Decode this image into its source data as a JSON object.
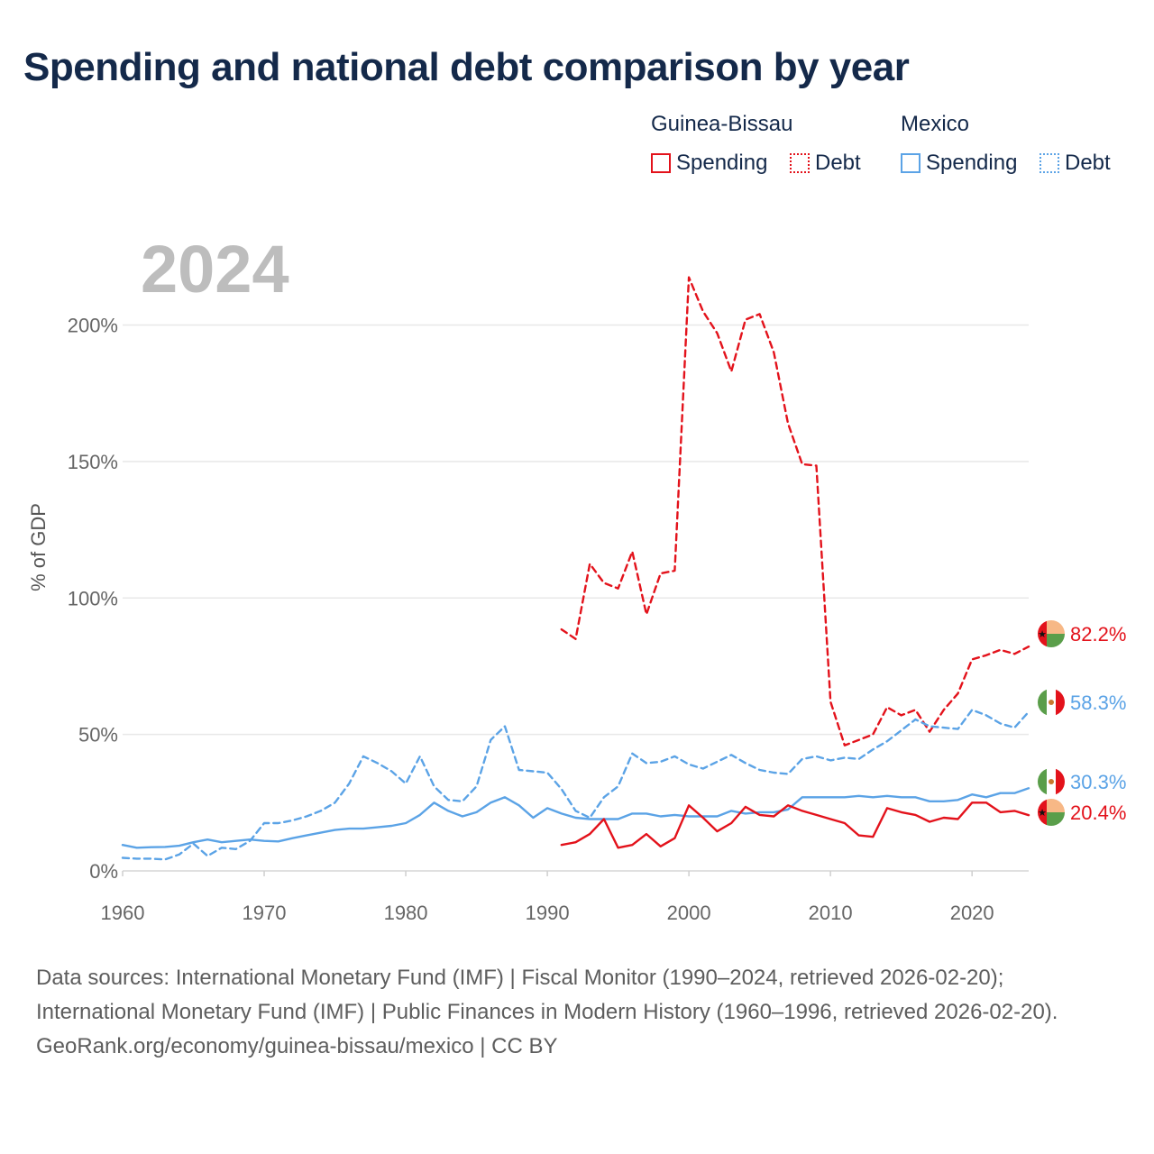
{
  "title": "Spending and national debt comparison by year",
  "legend": {
    "groups": [
      {
        "country": "Guinea-Bissau",
        "color": "#e3121b",
        "items": [
          {
            "label": "Spending",
            "style": "solid"
          },
          {
            "label": "Debt",
            "style": "dotted"
          }
        ]
      },
      {
        "country": "Mexico",
        "color": "#5ba3e6",
        "items": [
          {
            "label": "Spending",
            "style": "solid"
          },
          {
            "label": "Debt",
            "style": "dotted"
          }
        ]
      }
    ]
  },
  "chart_data": {
    "type": "line",
    "year_watermark": "2024",
    "ylabel": "% of GDP",
    "xlabel": "",
    "x_ticks": [
      "1960",
      "1970",
      "1980",
      "1990",
      "2000",
      "2010",
      "2020"
    ],
    "y_ticks": [
      "0%",
      "50%",
      "100%",
      "150%",
      "200%"
    ],
    "xlim": [
      1960,
      2024
    ],
    "ylim": [
      0,
      220
    ],
    "series": [
      {
        "name": "Guinea-Bissau Debt",
        "country": "Guinea-Bissau",
        "metric": "Debt",
        "color": "#e3121b",
        "dash": true,
        "end_label": "82.2%",
        "x": [
          1991,
          1992,
          1993,
          1994,
          1995,
          1996,
          1997,
          1998,
          1999,
          2000,
          2001,
          2002,
          2003,
          2004,
          2005,
          2006,
          2007,
          2008,
          2009,
          2010,
          2011,
          2012,
          2013,
          2014,
          2015,
          2016,
          2017,
          2018,
          2019,
          2020,
          2021,
          2022,
          2023,
          2024
        ],
        "values": [
          88.5,
          85,
          112.5,
          105.5,
          103.5,
          117,
          94,
          109,
          110,
          217.5,
          205,
          197,
          183,
          202,
          204,
          190,
          164,
          149,
          148.5,
          62,
          46,
          48,
          50,
          60,
          57,
          59,
          51,
          59,
          65,
          77.5,
          79,
          81,
          79.5,
          82.2
        ]
      },
      {
        "name": "Mexico Debt",
        "country": "Mexico",
        "metric": "Debt",
        "color": "#5ba3e6",
        "dash": true,
        "end_label": "58.3%",
        "x": [
          1960,
          1961,
          1962,
          1963,
          1964,
          1965,
          1966,
          1967,
          1968,
          1969,
          1970,
          1971,
          1972,
          1973,
          1974,
          1975,
          1976,
          1977,
          1978,
          1979,
          1980,
          1981,
          1982,
          1983,
          1984,
          1985,
          1986,
          1987,
          1988,
          1989,
          1990,
          1991,
          1992,
          1993,
          1994,
          1995,
          1996,
          1997,
          1998,
          1999,
          2000,
          2001,
          2002,
          2003,
          2004,
          2005,
          2006,
          2007,
          2008,
          2009,
          2010,
          2011,
          2012,
          2013,
          2014,
          2015,
          2016,
          2017,
          2018,
          2019,
          2020,
          2021,
          2022,
          2023,
          2024
        ],
        "values": [
          4.8,
          4.5,
          4.5,
          4.2,
          6,
          10,
          5.5,
          8.5,
          8,
          11,
          17.5,
          17.5,
          18.5,
          20,
          22,
          25,
          32,
          42,
          39.5,
          36.5,
          32,
          42,
          31,
          26,
          25.5,
          31,
          48,
          53,
          37,
          36.5,
          36,
          30,
          22,
          19.5,
          27,
          31,
          43,
          39.5,
          40,
          42,
          39,
          37.5,
          40,
          42.5,
          39.5,
          37,
          36,
          35.5,
          41,
          42,
          40.5,
          41.5,
          41,
          44.5,
          47.5,
          51.5,
          55.5,
          53,
          52.5,
          52,
          59,
          57,
          54,
          52.5,
          58.3
        ]
      },
      {
        "name": "Mexico Spending",
        "country": "Mexico",
        "metric": "Spending",
        "color": "#5ba3e6",
        "dash": false,
        "end_label": "30.3%",
        "x": [
          1960,
          1961,
          1962,
          1963,
          1964,
          1965,
          1966,
          1967,
          1968,
          1969,
          1970,
          1971,
          1972,
          1973,
          1974,
          1975,
          1976,
          1977,
          1978,
          1979,
          1980,
          1981,
          1982,
          1983,
          1984,
          1985,
          1986,
          1987,
          1988,
          1989,
          1990,
          1991,
          1992,
          1993,
          1994,
          1995,
          1996,
          1997,
          1998,
          1999,
          2000,
          2001,
          2002,
          2003,
          2004,
          2005,
          2006,
          2007,
          2008,
          2009,
          2010,
          2011,
          2012,
          2013,
          2014,
          2015,
          2016,
          2017,
          2018,
          2019,
          2020,
          2021,
          2022,
          2023,
          2024
        ],
        "values": [
          9.5,
          8.5,
          8.7,
          8.8,
          9.2,
          10.5,
          11.5,
          10.5,
          11,
          11.5,
          11,
          10.8,
          12,
          13,
          14,
          15,
          15.5,
          15.5,
          16,
          16.5,
          17.5,
          20.5,
          25,
          22,
          20,
          21.5,
          25,
          27,
          24,
          19.5,
          23,
          21,
          19.5,
          19,
          19,
          19,
          21,
          21,
          20,
          20.5,
          20,
          20,
          20,
          22,
          21,
          21.5,
          21.5,
          22.5,
          27,
          27,
          27,
          27,
          27.5,
          27,
          27.5,
          27,
          27,
          25.5,
          25.5,
          26,
          28,
          27,
          28.5,
          28.5,
          30.3
        ]
      },
      {
        "name": "Guinea-Bissau Spending",
        "country": "Guinea-Bissau",
        "metric": "Spending",
        "color": "#e3121b",
        "dash": false,
        "end_label": "20.4%",
        "x": [
          1991,
          1992,
          1993,
          1994,
          1995,
          1996,
          1997,
          1998,
          1999,
          2000,
          2001,
          2002,
          2003,
          2004,
          2005,
          2006,
          2007,
          2008,
          2009,
          2010,
          2011,
          2012,
          2013,
          2014,
          2015,
          2016,
          2017,
          2018,
          2019,
          2020,
          2021,
          2022,
          2023,
          2024
        ],
        "values": [
          9.5,
          10.5,
          13.5,
          19,
          8.5,
          9.5,
          13.5,
          9,
          12,
          24,
          19.5,
          14.5,
          17.5,
          23.5,
          20.5,
          20,
          24,
          22,
          20.5,
          19,
          17.5,
          13,
          12.5,
          23,
          21.5,
          20.5,
          18,
          19.5,
          19,
          25,
          25,
          21.5,
          22,
          20.4
        ]
      }
    ]
  },
  "footer": {
    "sources": "Data sources: International Monetary Fund (IMF) | Fiscal Monitor (1990–2024, retrieved 2026-02-20); International Monetary Fund (IMF) | Public Finances in Modern History (1960–1996, retrieved 2026-02-20).",
    "credit": "GeoRank.org/economy/guinea-bissau/mexico | CC BY"
  }
}
